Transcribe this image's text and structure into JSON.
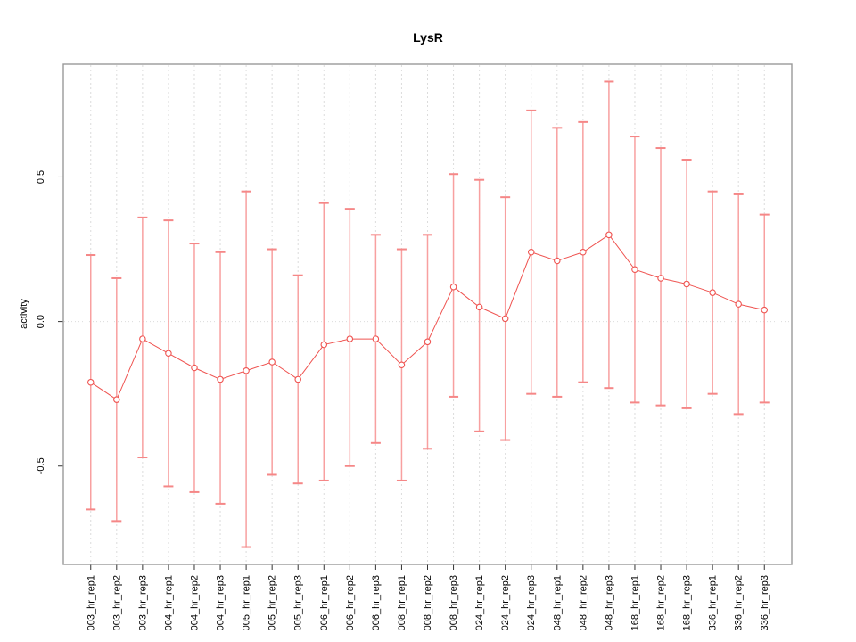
{
  "title": "LysR",
  "chart_data": {
    "type": "line",
    "title": "LysR",
    "xlabel": "",
    "ylabel": "activity",
    "legend": "none",
    "marker": "open-circle",
    "categories": [
      "003_hr_rep1",
      "003_hr_rep2",
      "003_hr_rep3",
      "004_hr_rep1",
      "004_hr_rep2",
      "004_hr_rep3",
      "005_hr_rep1",
      "005_hr_rep2",
      "005_hr_rep3",
      "006_hr_rep1",
      "006_hr_rep2",
      "006_hr_rep3",
      "008_hr_rep1",
      "008_hr_rep2",
      "008_hr_rep3",
      "024_hr_rep1",
      "024_hr_rep2",
      "024_hr_rep3",
      "048_hr_rep1",
      "048_hr_rep2",
      "048_hr_rep3",
      "168_hr_rep1",
      "168_hr_rep2",
      "168_hr_rep3",
      "336_hr_rep1",
      "336_hr_rep2",
      "336_hr_rep3"
    ],
    "series": [
      {
        "name": "activity",
        "values": [
          -0.21,
          -0.27,
          -0.06,
          -0.11,
          -0.16,
          -0.2,
          -0.17,
          -0.14,
          -0.2,
          -0.08,
          -0.06,
          -0.06,
          -0.15,
          -0.07,
          0.12,
          0.05,
          0.01,
          0.24,
          0.21,
          0.24,
          0.3,
          0.18,
          0.15,
          0.13,
          0.1,
          0.06,
          0.04
        ],
        "error_upper": [
          0.23,
          0.15,
          0.36,
          0.35,
          0.27,
          0.24,
          0.45,
          0.25,
          0.16,
          0.41,
          0.39,
          0.3,
          0.25,
          0.3,
          0.51,
          0.49,
          0.43,
          0.73,
          0.67,
          0.69,
          0.83,
          0.64,
          0.6,
          0.56,
          0.45,
          0.44,
          0.37
        ],
        "error_lower": [
          -0.65,
          -0.69,
          -0.47,
          -0.57,
          -0.59,
          -0.63,
          -0.78,
          -0.53,
          -0.56,
          -0.55,
          -0.5,
          -0.42,
          -0.55,
          -0.44,
          -0.26,
          -0.38,
          -0.41,
          -0.25,
          -0.26,
          -0.21,
          -0.23,
          -0.28,
          -0.29,
          -0.3,
          -0.25,
          -0.32,
          -0.28
        ]
      }
    ],
    "yticks": [
      0.5,
      0.0,
      -0.5
    ],
    "ytick_labels": [
      "0.5",
      "0.0",
      "-0.5"
    ],
    "ylim": [
      -0.84,
      0.89
    ],
    "grid": {
      "vertical": "dotted line at every category",
      "horizontal": "dotted line at 0.0 only"
    },
    "colors": {
      "series": "#ef5350",
      "error_bar": "#f8a0a0",
      "error_cap": "#f58787",
      "grid": "#dcdcdc",
      "axis_box": "#999999",
      "tick": "#333333",
      "text": "#000000"
    }
  }
}
